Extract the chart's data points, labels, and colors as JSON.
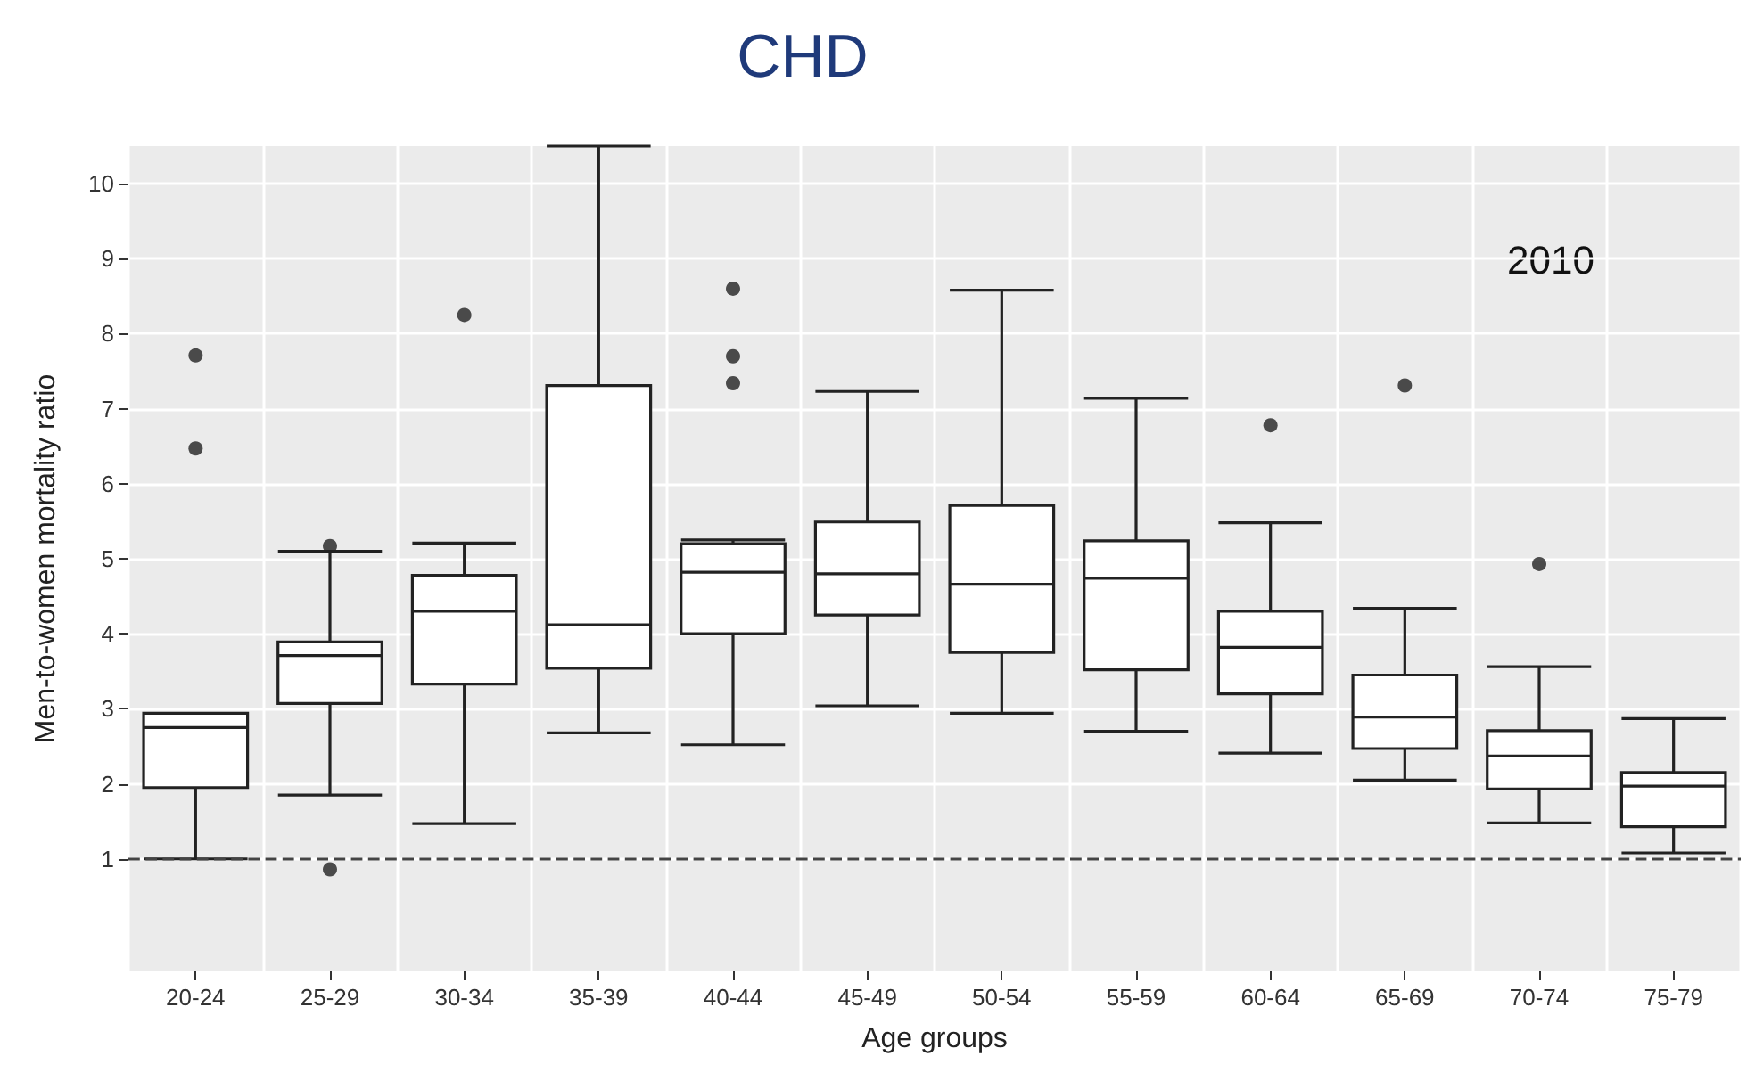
{
  "chart_data": {
    "type": "box",
    "title": "CHD",
    "xlabel": "Age groups",
    "ylabel": "Men-to-women mortality ratio",
    "categories": [
      "20-24",
      "25-29",
      "30-34",
      "35-39",
      "40-44",
      "45-49",
      "50-54",
      "55-59",
      "60-64",
      "65-69",
      "70-74",
      "75-79"
    ],
    "boxes": [
      {
        "low": 1.0,
        "q1": 1.95,
        "median": 2.75,
        "q3": 2.94,
        "high": 2.94,
        "outliers": [
          7.71,
          6.47
        ]
      },
      {
        "low": 1.85,
        "q1": 3.07,
        "median": 3.71,
        "q3": 3.89,
        "high": 5.1,
        "outliers": [
          5.17,
          0.86
        ]
      },
      {
        "low": 1.47,
        "q1": 3.33,
        "median": 4.3,
        "q3": 4.78,
        "high": 5.21,
        "outliers": [
          8.25
        ]
      },
      {
        "low": 2.68,
        "q1": 3.54,
        "median": 4.12,
        "q3": 7.31,
        "high": 10.5
      },
      {
        "low": 2.52,
        "q1": 4.0,
        "median": 4.82,
        "q3": 5.2,
        "high": 5.25,
        "outliers": [
          8.6,
          7.7,
          7.34
        ]
      },
      {
        "low": 3.04,
        "q1": 4.25,
        "median": 4.8,
        "q3": 5.49,
        "high": 7.23
      },
      {
        "low": 2.94,
        "q1": 3.75,
        "median": 4.66,
        "q3": 5.71,
        "high": 8.58
      },
      {
        "low": 2.7,
        "q1": 3.52,
        "median": 4.74,
        "q3": 5.24,
        "high": 7.14
      },
      {
        "low": 2.41,
        "q1": 3.2,
        "median": 3.82,
        "q3": 4.3,
        "high": 5.48,
        "outliers": [
          6.78
        ]
      },
      {
        "low": 2.05,
        "q1": 2.47,
        "median": 2.89,
        "q3": 3.45,
        "high": 4.34,
        "outliers": [
          7.31
        ]
      },
      {
        "low": 1.48,
        "q1": 1.93,
        "median": 2.37,
        "q3": 2.71,
        "high": 3.56,
        "outliers": [
          4.93
        ]
      },
      {
        "low": 1.08,
        "q1": 1.43,
        "median": 1.97,
        "q3": 2.15,
        "high": 2.87
      }
    ],
    "color": "#222222",
    "ylim": [
      -0.5,
      10.5
    ],
    "yticks": [
      1,
      2,
      3,
      4,
      5,
      6,
      7,
      8,
      9,
      10
    ],
    "ref_lines": [
      {
        "axis": "y",
        "value": 1,
        "line_style": "dashed",
        "color": "#444444"
      }
    ],
    "annotations": [
      "2010"
    ],
    "grid": true,
    "marker": "circle"
  }
}
